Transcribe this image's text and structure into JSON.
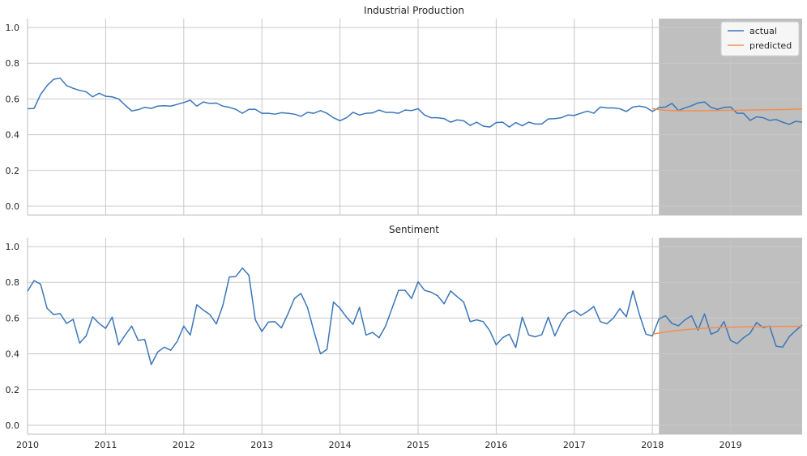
{
  "chart_data": [
    {
      "type": "line",
      "title": "Industrial Production",
      "xlabel": "",
      "ylabel": "",
      "xlim": [
        "2010-01",
        "2019-12"
      ],
      "ylim": [
        -0.05,
        1.05
      ],
      "yticks": [
        0.0,
        0.2,
        0.4,
        0.6,
        0.8,
        1.0
      ],
      "ytick_labels": [
        "0.0",
        "0.2",
        "0.4",
        "0.6",
        "0.8",
        "1.0"
      ],
      "xticks": [
        "2010-01",
        "2011-01",
        "2012-01",
        "2013-01",
        "2014-01",
        "2015-01",
        "2016-01",
        "2017-01",
        "2018-01",
        "2019-01"
      ],
      "xtick_labels": [],
      "grid": true,
      "legend": "top-right",
      "shaded_region": {
        "x_start": "2018-02",
        "x_end": "2019-12",
        "color": "#bfbfbf"
      },
      "series": [
        {
          "name": "actual",
          "color": "#3a76b9",
          "x_start": "2010-01",
          "values": [
            0.545,
            0.547,
            0.625,
            0.675,
            0.71,
            0.717,
            0.675,
            0.66,
            0.648,
            0.64,
            0.612,
            0.632,
            0.615,
            0.612,
            0.6,
            0.565,
            0.533,
            0.54,
            0.553,
            0.547,
            0.56,
            0.562,
            0.56,
            0.57,
            0.58,
            0.593,
            0.56,
            0.583,
            0.575,
            0.577,
            0.56,
            0.553,
            0.542,
            0.52,
            0.542,
            0.542,
            0.52,
            0.52,
            0.515,
            0.523,
            0.52,
            0.515,
            0.503,
            0.525,
            0.52,
            0.535,
            0.52,
            0.495,
            0.478,
            0.495,
            0.525,
            0.51,
            0.52,
            0.522,
            0.538,
            0.525,
            0.525,
            0.52,
            0.538,
            0.535,
            0.545,
            0.51,
            0.495,
            0.495,
            0.49,
            0.47,
            0.483,
            0.478,
            0.452,
            0.47,
            0.448,
            0.443,
            0.468,
            0.47,
            0.443,
            0.468,
            0.45,
            0.47,
            0.46,
            0.46,
            0.488,
            0.49,
            0.495,
            0.51,
            0.508,
            0.52,
            0.532,
            0.52,
            0.555,
            0.55,
            0.55,
            0.545,
            0.53,
            0.555,
            0.56,
            0.553,
            0.53,
            0.552,
            0.555,
            0.575,
            0.535,
            0.55,
            0.562,
            0.578,
            0.583,
            0.553,
            0.542,
            0.553,
            0.555,
            0.52,
            0.52,
            0.48,
            0.5,
            0.495,
            0.48,
            0.485,
            0.47,
            0.458,
            0.475,
            0.47
          ]
        },
        {
          "name": "predicted",
          "color": "#f28e52",
          "x_start": "2018-01",
          "values": [
            0.546,
            0.54,
            0.537,
            0.535,
            0.534,
            0.534,
            0.534,
            0.534,
            0.534,
            0.535,
            0.535,
            0.536,
            0.536,
            0.537,
            0.537,
            0.538,
            0.539,
            0.539,
            0.54,
            0.541,
            0.541,
            0.542,
            0.543,
            0.544
          ]
        }
      ]
    },
    {
      "type": "line",
      "title": "Sentiment",
      "xlabel": "",
      "ylabel": "",
      "xlim": [
        "2010-01",
        "2019-12"
      ],
      "ylim": [
        -0.05,
        1.05
      ],
      "yticks": [
        0.0,
        0.2,
        0.4,
        0.6,
        0.8,
        1.0
      ],
      "ytick_labels": [
        "0.0",
        "0.2",
        "0.4",
        "0.6",
        "0.8",
        "1.0"
      ],
      "xticks": [
        "2010-01",
        "2011-01",
        "2012-01",
        "2013-01",
        "2014-01",
        "2015-01",
        "2016-01",
        "2017-01",
        "2018-01",
        "2019-01"
      ],
      "xtick_labels": [
        "2010",
        "2011",
        "2012",
        "2013",
        "2014",
        "2015",
        "2016",
        "2017",
        "2018",
        "2019"
      ],
      "grid": true,
      "legend": "none",
      "shaded_region": {
        "x_start": "2018-02",
        "x_end": "2019-12",
        "color": "#bfbfbf"
      },
      "series": [
        {
          "name": "actual",
          "color": "#3a76b9",
          "x_start": "2010-01",
          "values": [
            0.75,
            0.81,
            0.79,
            0.655,
            0.62,
            0.625,
            0.57,
            0.593,
            0.46,
            0.5,
            0.607,
            0.57,
            0.542,
            0.605,
            0.45,
            0.505,
            0.555,
            0.475,
            0.48,
            0.34,
            0.41,
            0.437,
            0.42,
            0.47,
            0.555,
            0.505,
            0.675,
            0.645,
            0.62,
            0.567,
            0.67,
            0.83,
            0.833,
            0.88,
            0.84,
            0.59,
            0.525,
            0.578,
            0.58,
            0.545,
            0.623,
            0.71,
            0.738,
            0.66,
            0.525,
            0.4,
            0.425,
            0.69,
            0.655,
            0.605,
            0.565,
            0.66,
            0.505,
            0.52,
            0.49,
            0.555,
            0.655,
            0.755,
            0.755,
            0.71,
            0.803,
            0.755,
            0.745,
            0.725,
            0.68,
            0.752,
            0.72,
            0.69,
            0.58,
            0.59,
            0.58,
            0.53,
            0.45,
            0.49,
            0.51,
            0.435,
            0.605,
            0.505,
            0.495,
            0.507,
            0.605,
            0.5,
            0.577,
            0.627,
            0.643,
            0.615,
            0.637,
            0.665,
            0.58,
            0.568,
            0.6,
            0.653,
            0.607,
            0.752,
            0.62,
            0.51,
            0.5,
            0.595,
            0.613,
            0.57,
            0.557,
            0.59,
            0.613,
            0.533,
            0.623,
            0.51,
            0.525,
            0.58,
            0.475,
            0.457,
            0.49,
            0.515,
            0.575,
            0.547,
            0.555,
            0.443,
            0.437,
            0.495,
            0.53,
            0.56
          ]
        },
        {
          "name": "predicted",
          "color": "#f28e52",
          "x_start": "2018-01",
          "values": [
            0.51,
            0.516,
            0.522,
            0.527,
            0.531,
            0.535,
            0.538,
            0.541,
            0.543,
            0.545,
            0.547,
            0.548,
            0.549,
            0.55,
            0.551,
            0.551,
            0.552,
            0.552,
            0.553,
            0.553,
            0.553,
            0.553,
            0.554,
            0.554
          ]
        }
      ]
    }
  ]
}
